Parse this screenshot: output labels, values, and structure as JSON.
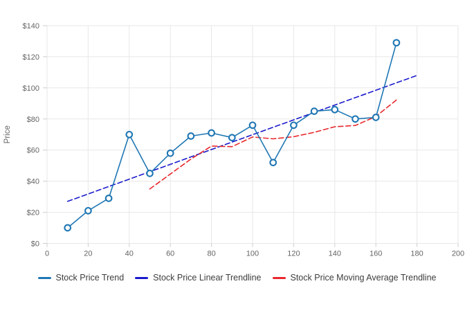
{
  "chart_data": {
    "type": "line",
    "title": "",
    "xlabel": "",
    "ylabel": "Price",
    "xlim": [
      0,
      200
    ],
    "ylim": [
      0,
      140
    ],
    "x_ticks": [
      0,
      20,
      40,
      60,
      80,
      100,
      120,
      140,
      160,
      180,
      200
    ],
    "y_ticks": [
      0,
      20,
      40,
      60,
      80,
      100,
      120,
      140
    ],
    "y_tick_labels": [
      "$0",
      "$20",
      "$40",
      "$60",
      "$80",
      "$100",
      "$120",
      "$140"
    ],
    "grid": true,
    "grid_color": "#e7e7e7",
    "tick_color": "#cccccc",
    "axis_text_color": "#646464",
    "legend_position": "bottom",
    "series": [
      {
        "name": "Stock Price Trend",
        "style": "solid",
        "markers": true,
        "color": "#1f77b4",
        "x": [
          10,
          20,
          30,
          40,
          50,
          60,
          70,
          80,
          90,
          100,
          110,
          120,
          130,
          140,
          150,
          160,
          170
        ],
        "y": [
          10,
          21,
          29,
          70,
          45,
          58,
          69,
          71,
          68,
          76,
          52,
          76,
          85,
          86,
          80,
          81,
          129
        ]
      },
      {
        "name": "Stock Price Linear Trendline",
        "style": "dashed",
        "markers": false,
        "color": "#1a1acc",
        "x": [
          10,
          180
        ],
        "y": [
          27,
          108
        ]
      },
      {
        "name": "Stock Price Moving Average Trendline",
        "style": "dashed",
        "markers": false,
        "color": "#e8282c",
        "x": [
          50,
          60,
          70,
          80,
          90,
          100,
          110,
          120,
          130,
          140,
          150,
          160,
          170
        ],
        "y": [
          35,
          44.6,
          54.2,
          62.6,
          62.2,
          68.4,
          67.2,
          68.6,
          71.4,
          75,
          75.8,
          81.6,
          92.2
        ]
      }
    ]
  }
}
